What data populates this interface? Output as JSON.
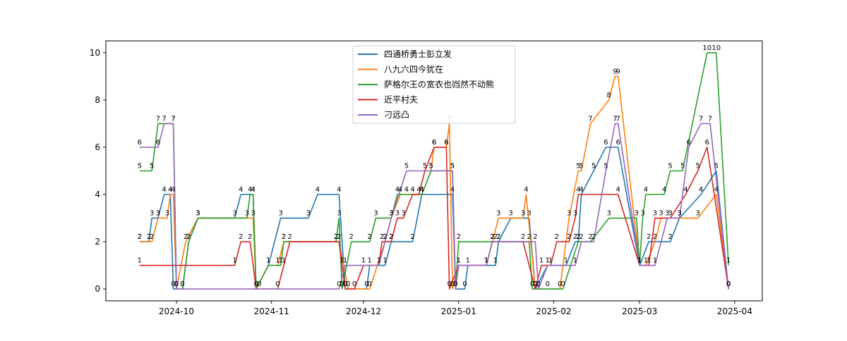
{
  "chart_data": {
    "type": "line",
    "title": "",
    "xlabel": "",
    "ylabel": "",
    "x_ticks": [
      "2024-10",
      "2024-11",
      "2024-12",
      "2025-01",
      "2025-02",
      "2025-03",
      "2025-04"
    ],
    "y_ticks": [
      "0",
      "2",
      "4",
      "6",
      "8",
      "10"
    ],
    "ylim": [
      -0.5,
      10.5
    ],
    "xlim": [
      "2024-09-08",
      "2025-04-10"
    ],
    "grid": false,
    "legend_position": "top-center",
    "series": [
      {
        "name": "四通桥勇士彭立发",
        "color": "#1f77b4",
        "points": [
          [
            "2024-09-19",
            2
          ],
          [
            "2024-09-22",
            2
          ],
          [
            "2024-09-23",
            3
          ],
          [
            "2024-09-25",
            3
          ],
          [
            "2024-09-27",
            4
          ],
          [
            "2024-09-29",
            4
          ],
          [
            "2024-09-30",
            0
          ],
          [
            "2024-10-03",
            0
          ],
          [
            "2024-10-05",
            2
          ],
          [
            "2024-10-08",
            3
          ],
          [
            "2024-10-20",
            3
          ],
          [
            "2024-10-22",
            4
          ],
          [
            "2024-10-26",
            4
          ],
          [
            "2024-10-27",
            0
          ],
          [
            "2024-10-31",
            1
          ],
          [
            "2024-11-04",
            3
          ],
          [
            "2024-11-13",
            3
          ],
          [
            "2024-11-16",
            4
          ],
          [
            "2024-11-23",
            4
          ],
          [
            "2024-11-25",
            0
          ],
          [
            "2024-12-02",
            0
          ],
          [
            "2024-12-03",
            1
          ],
          [
            "2024-12-08",
            1
          ],
          [
            "2024-12-10",
            2
          ],
          [
            "2024-12-17",
            2
          ],
          [
            "2024-12-20",
            4
          ],
          [
            "2024-12-30",
            4
          ],
          [
            "2024-12-31",
            0
          ],
          [
            "2025-01-03",
            0
          ],
          [
            "2025-01-04",
            1
          ],
          [
            "2025-01-13",
            1
          ],
          [
            "2025-01-14",
            2
          ],
          [
            "2025-01-18",
            3
          ],
          [
            "2025-01-24",
            3
          ],
          [
            "2025-01-26",
            0
          ],
          [
            "2025-01-30",
            1
          ],
          [
            "2025-02-05",
            1
          ],
          [
            "2025-02-08",
            2
          ],
          [
            "2025-02-09",
            2
          ],
          [
            "2025-02-10",
            4
          ],
          [
            "2025-02-14",
            5
          ],
          [
            "2025-02-18",
            6
          ],
          [
            "2025-02-22",
            6
          ],
          [
            "2025-03-01",
            1
          ],
          [
            "2025-03-04",
            2
          ],
          [
            "2025-03-11",
            2
          ],
          [
            "2025-03-14",
            3
          ],
          [
            "2025-03-21",
            4
          ],
          [
            "2025-03-26",
            5
          ],
          [
            "2025-03-30",
            0
          ]
        ]
      },
      {
        "name": "八九六四今犹在",
        "color": "#ff7f0e",
        "points": [
          [
            "2024-09-19",
            2
          ],
          [
            "2024-09-23",
            2
          ],
          [
            "2024-09-25",
            3
          ],
          [
            "2024-09-28",
            3
          ],
          [
            "2024-09-29",
            4
          ],
          [
            "2024-09-30",
            4
          ],
          [
            "2024-10-01",
            0
          ],
          [
            "2024-10-04",
            2
          ],
          [
            "2024-10-08",
            3
          ],
          [
            "2024-10-26",
            3
          ],
          [
            "2024-10-27",
            0
          ],
          [
            "2024-10-31",
            1
          ],
          [
            "2024-11-03",
            1
          ],
          [
            "2024-11-05",
            2
          ],
          [
            "2024-11-23",
            2
          ],
          [
            "2024-11-26",
            0
          ],
          [
            "2024-12-03",
            0
          ],
          [
            "2024-12-08",
            2
          ],
          [
            "2024-12-10",
            3
          ],
          [
            "2024-12-13",
            4
          ],
          [
            "2024-12-15",
            4
          ],
          [
            "2024-12-20",
            4
          ],
          [
            "2024-12-23",
            5
          ],
          [
            "2024-12-24",
            6
          ],
          [
            "2024-12-28",
            6
          ],
          [
            "2024-12-29",
            7
          ],
          [
            "2024-12-30",
            0
          ],
          [
            "2025-01-01",
            1
          ],
          [
            "2025-01-10",
            1
          ],
          [
            "2025-01-12",
            2
          ],
          [
            "2025-01-14",
            3
          ],
          [
            "2025-01-22",
            3
          ],
          [
            "2025-01-23",
            4
          ],
          [
            "2025-01-26",
            0
          ],
          [
            "2025-02-03",
            0
          ],
          [
            "2025-02-06",
            3
          ],
          [
            "2025-02-09",
            5
          ],
          [
            "2025-02-10",
            5
          ],
          [
            "2025-02-13",
            7
          ],
          [
            "2025-02-19",
            8
          ],
          [
            "2025-02-21",
            9
          ],
          [
            "2025-02-22",
            9
          ],
          [
            "2025-03-01",
            1
          ],
          [
            "2025-03-03",
            1
          ],
          [
            "2025-03-06",
            2
          ],
          [
            "2025-03-08",
            3
          ],
          [
            "2025-03-20",
            3
          ],
          [
            "2025-03-26",
            4
          ],
          [
            "2025-03-30",
            0
          ]
        ]
      },
      {
        "name": "萨格尔王の宽衣也岿然不动熊",
        "color": "#2ca02c",
        "points": [
          [
            "2024-09-19",
            5
          ],
          [
            "2024-09-23",
            5
          ],
          [
            "2024-09-25",
            7
          ],
          [
            "2024-09-30",
            7
          ],
          [
            "2024-10-01",
            0
          ],
          [
            "2024-10-03",
            0
          ],
          [
            "2024-10-05",
            2
          ],
          [
            "2024-10-08",
            3
          ],
          [
            "2024-10-24",
            3
          ],
          [
            "2024-10-25",
            4
          ],
          [
            "2024-10-26",
            4
          ],
          [
            "2024-10-27",
            0
          ],
          [
            "2024-10-31",
            1
          ],
          [
            "2024-11-04",
            1
          ],
          [
            "2024-11-05",
            2
          ],
          [
            "2024-11-22",
            2
          ],
          [
            "2024-11-23",
            3
          ],
          [
            "2024-11-24",
            0
          ],
          [
            "2024-11-27",
            2
          ],
          [
            "2024-12-03",
            2
          ],
          [
            "2024-12-05",
            3
          ],
          [
            "2024-12-10",
            3
          ],
          [
            "2024-12-12",
            4
          ],
          [
            "2024-12-20",
            4
          ],
          [
            "2024-12-23",
            5
          ],
          [
            "2024-12-30",
            5
          ],
          [
            "2024-12-31",
            0
          ],
          [
            "2025-01-01",
            2
          ],
          [
            "2025-01-13",
            2
          ],
          [
            "2025-01-14",
            2
          ],
          [
            "2025-01-24",
            2
          ],
          [
            "2025-01-25",
            0
          ],
          [
            "2025-01-30",
            0
          ],
          [
            "2025-02-04",
            0
          ],
          [
            "2025-02-09",
            2
          ],
          [
            "2025-02-13",
            2
          ],
          [
            "2025-02-19",
            3
          ],
          [
            "2025-02-28",
            3
          ],
          [
            "2025-03-01",
            1
          ],
          [
            "2025-03-02",
            3
          ],
          [
            "2025-03-03",
            4
          ],
          [
            "2025-03-09",
            4
          ],
          [
            "2025-03-11",
            5
          ],
          [
            "2025-03-15",
            5
          ],
          [
            "2025-03-23",
            10
          ],
          [
            "2025-03-26",
            10
          ],
          [
            "2025-03-30",
            1
          ]
        ]
      },
      {
        "name": "近平村夫",
        "color": "#d62728",
        "points": [
          [
            "2024-09-19",
            1
          ],
          [
            "2024-10-20",
            1
          ],
          [
            "2024-10-22",
            2
          ],
          [
            "2024-10-25",
            2
          ],
          [
            "2024-10-27",
            0
          ],
          [
            "2024-11-03",
            0
          ],
          [
            "2024-11-05",
            1
          ],
          [
            "2024-11-07",
            2
          ],
          [
            "2024-11-23",
            2
          ],
          [
            "2024-11-24",
            1
          ],
          [
            "2024-11-25",
            0
          ],
          [
            "2024-11-28",
            0
          ],
          [
            "2024-12-01",
            1
          ],
          [
            "2024-12-06",
            1
          ],
          [
            "2024-12-07",
            2
          ],
          [
            "2024-12-10",
            2
          ],
          [
            "2024-12-12",
            3
          ],
          [
            "2024-12-14",
            3
          ],
          [
            "2024-12-17",
            4
          ],
          [
            "2024-12-19",
            4
          ],
          [
            "2024-12-21",
            5
          ],
          [
            "2024-12-24",
            6
          ],
          [
            "2024-12-28",
            6
          ],
          [
            "2024-12-29",
            0
          ],
          [
            "2025-01-01",
            1
          ],
          [
            "2025-01-10",
            1
          ],
          [
            "2025-01-12",
            2
          ],
          [
            "2025-01-22",
            2
          ],
          [
            "2025-01-26",
            0
          ],
          [
            "2025-01-28",
            1
          ],
          [
            "2025-01-31",
            1
          ],
          [
            "2025-02-02",
            2
          ],
          [
            "2025-02-06",
            2
          ],
          [
            "2025-02-08",
            3
          ],
          [
            "2025-02-09",
            4
          ],
          [
            "2025-02-22",
            4
          ],
          [
            "2025-03-01",
            1
          ],
          [
            "2025-03-04",
            1
          ],
          [
            "2025-03-06",
            3
          ],
          [
            "2025-03-11",
            3
          ],
          [
            "2025-03-16",
            4
          ],
          [
            "2025-03-20",
            5
          ],
          [
            "2025-03-23",
            6
          ],
          [
            "2025-03-30",
            0
          ]
        ]
      },
      {
        "name": "刁远凸",
        "color": "#9467bd",
        "points": [
          [
            "2024-09-19",
            6
          ],
          [
            "2024-09-25",
            6
          ],
          [
            "2024-09-27",
            7
          ],
          [
            "2024-09-30",
            7
          ],
          [
            "2024-10-01",
            0
          ],
          [
            "2024-10-28",
            0
          ],
          [
            "2024-11-23",
            0
          ],
          [
            "2024-11-25",
            1
          ],
          [
            "2024-12-06",
            1
          ],
          [
            "2024-12-08",
            2
          ],
          [
            "2024-12-10",
            3
          ],
          [
            "2024-12-15",
            5
          ],
          [
            "2024-12-30",
            5
          ],
          [
            "2024-12-31",
            0
          ],
          [
            "2025-01-01",
            1
          ],
          [
            "2025-01-10",
            1
          ],
          [
            "2025-01-12",
            2
          ],
          [
            "2025-01-26",
            2
          ],
          [
            "2025-01-27",
            0
          ],
          [
            "2025-01-30",
            1
          ],
          [
            "2025-02-08",
            1
          ],
          [
            "2025-02-10",
            2
          ],
          [
            "2025-02-14",
            2
          ],
          [
            "2025-02-18",
            5
          ],
          [
            "2025-02-21",
            7
          ],
          [
            "2025-02-22",
            7
          ],
          [
            "2025-03-01",
            1
          ],
          [
            "2025-03-06",
            1
          ],
          [
            "2025-03-10",
            3
          ],
          [
            "2025-03-14",
            3
          ],
          [
            "2025-03-17",
            6
          ],
          [
            "2025-03-21",
            7
          ],
          [
            "2025-03-24",
            7
          ],
          [
            "2025-03-30",
            0
          ]
        ]
      }
    ]
  }
}
